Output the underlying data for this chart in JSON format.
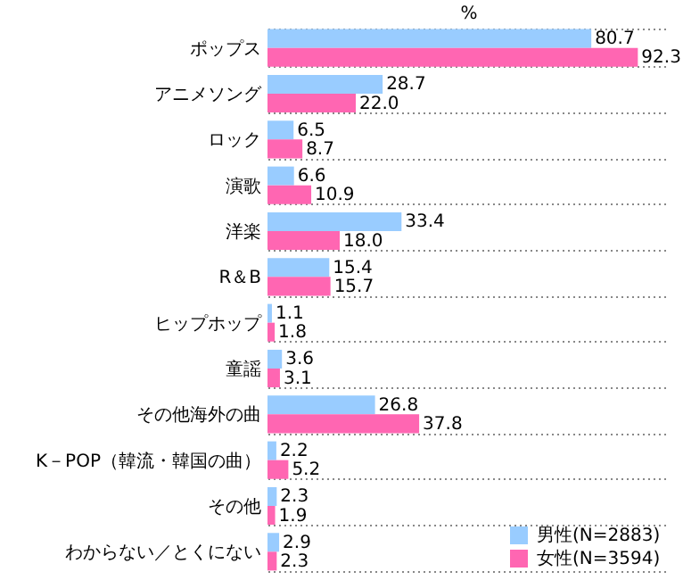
{
  "chart_data": {
    "type": "bar",
    "orientation": "horizontal",
    "xlabel": "%",
    "categories": [
      "ポップス",
      "アニメソング",
      "ロック",
      "演歌",
      "洋楽",
      "R＆B",
      "ヒップホップ",
      "童謡",
      "その他海外の曲",
      "K－POP（韓流・韓国の曲）",
      "その他",
      "わからない／とくにない"
    ],
    "series": [
      {
        "name": "男性(N=2883)",
        "color": "#99ccff",
        "values": [
          80.7,
          28.7,
          6.5,
          6.6,
          33.4,
          15.4,
          1.1,
          3.6,
          26.8,
          2.2,
          2.3,
          2.9
        ],
        "value_labels": [
          "80.7",
          "28.7",
          "6.5",
          "6.6",
          "33.4",
          "15.4",
          "1.1",
          "3.6",
          "26.8",
          "2.2",
          "2.3",
          "2.9"
        ]
      },
      {
        "name": "女性(N=3594)",
        "color": "#ff66b2",
        "values": [
          92.3,
          22.0,
          8.7,
          10.9,
          18.0,
          15.7,
          1.8,
          3.1,
          37.8,
          5.2,
          1.9,
          2.3
        ],
        "value_labels": [
          "92.3",
          "22.0",
          "8.7",
          "10.9",
          "18.0",
          "15.7",
          "1.8",
          "3.1",
          "37.8",
          "5.2",
          "1.9",
          "2.3"
        ]
      }
    ],
    "grid": "y",
    "legend": "bottom right"
  }
}
